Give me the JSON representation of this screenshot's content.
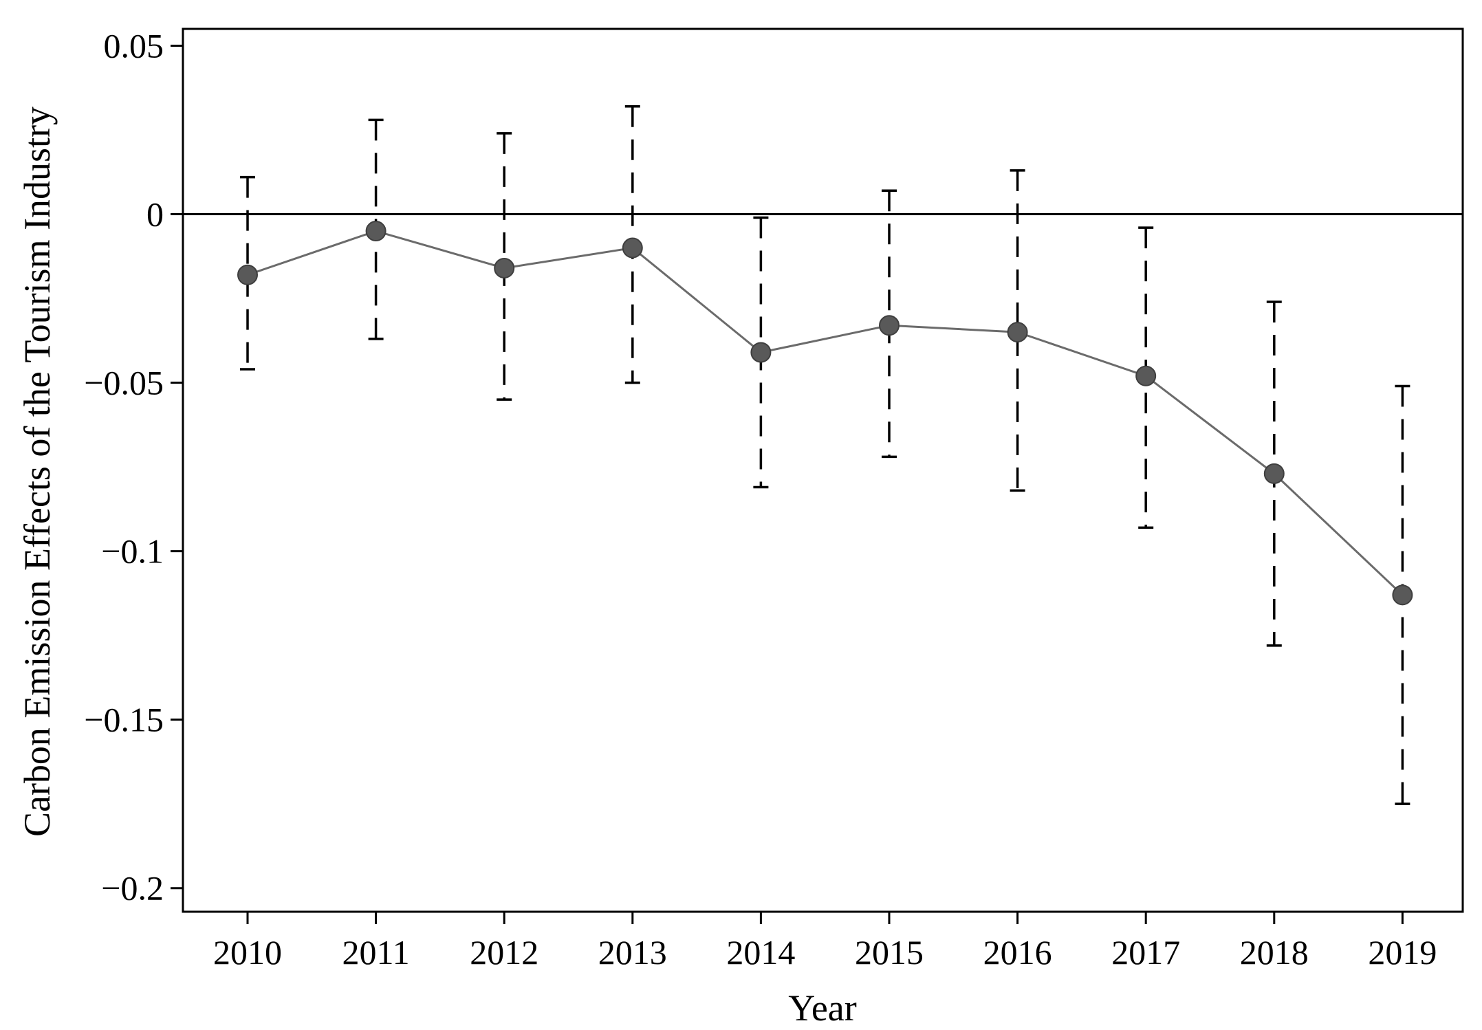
{
  "chart_data": {
    "type": "line",
    "xlabel": "Year",
    "ylabel": "Carbon Emission Effects of the Tourism Industry",
    "categories": [
      "2010",
      "2011",
      "2012",
      "2013",
      "2014",
      "2015",
      "2016",
      "2017",
      "2018",
      "2019"
    ],
    "ylim": [
      -0.207,
      0.055
    ],
    "yticks": [
      0.05,
      0,
      -0.05,
      -0.1,
      -0.15,
      -0.2
    ],
    "ytick_labels": [
      "0.05",
      "0",
      "−0.05",
      "−0.1",
      "−0.15",
      "−0.2"
    ],
    "reference_line": 0,
    "series": [
      {
        "values": [
          -0.018,
          -0.005,
          -0.016,
          -0.01,
          -0.041,
          -0.033,
          -0.035,
          -0.048,
          -0.077,
          -0.113
        ],
        "ci_lower": [
          -0.046,
          -0.037,
          -0.055,
          -0.05,
          -0.081,
          -0.072,
          -0.082,
          -0.093,
          -0.128,
          -0.175
        ],
        "ci_upper": [
          0.011,
          0.028,
          0.024,
          0.032,
          -0.001,
          0.007,
          0.013,
          -0.004,
          -0.026,
          -0.051
        ]
      }
    ],
    "grid": false,
    "legend": "none",
    "colors": {
      "line": "#6b6b6b",
      "marker": "#595959",
      "errorbar": "#000000",
      "frame": "#000000"
    }
  }
}
